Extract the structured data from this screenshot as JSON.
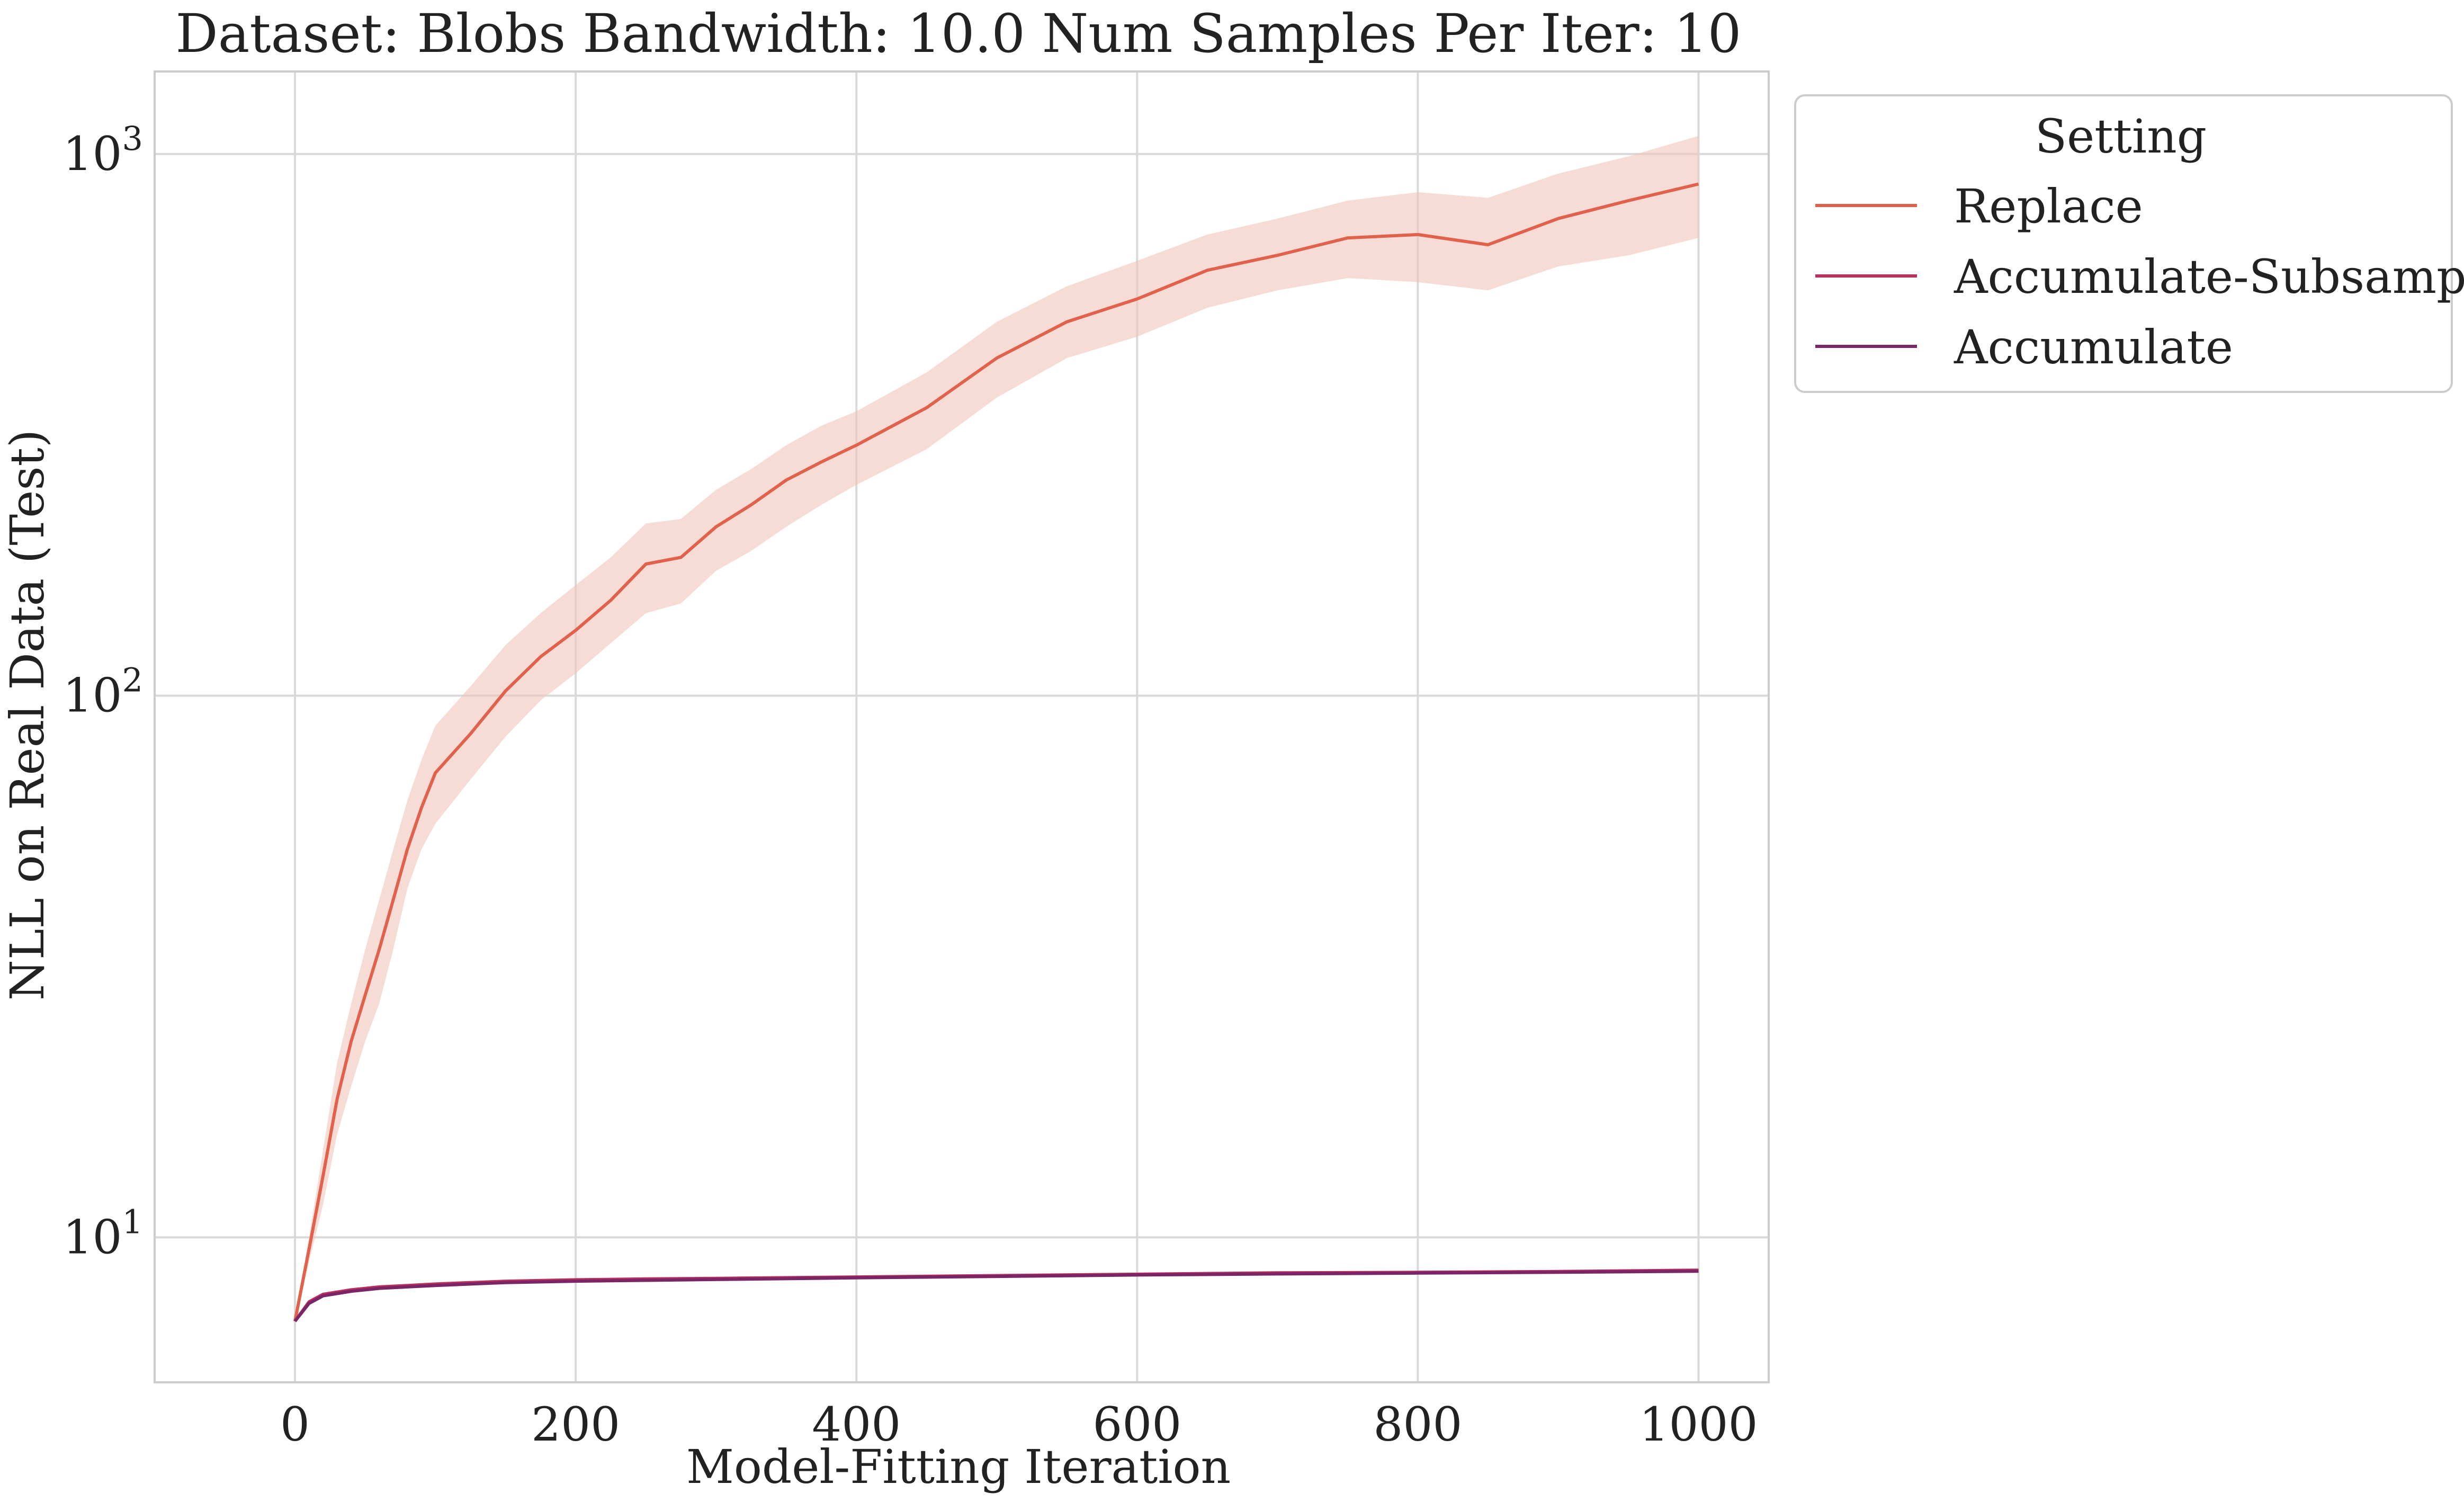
{
  "chart_data": {
    "type": "line",
    "title": "Dataset: Blobs Bandwidth: 10.0 Num Samples Per Iter: 10",
    "xlabel": "Model-Fitting Iteration",
    "ylabel": "NLL on Real Data (Test)",
    "xlim": [
      -100,
      1050
    ],
    "ylim": [
      5.4,
      1420
    ],
    "yscale": "log",
    "grid": true,
    "x_ticks": [
      0,
      200,
      400,
      600,
      800,
      1000
    ],
    "x_tick_labels": [
      "0",
      "200",
      "400",
      "600",
      "800",
      "1000"
    ],
    "y_ticks": [
      10,
      100,
      1000
    ],
    "y_tick_labels": [
      {
        "base": "10",
        "exp": "1"
      },
      {
        "base": "10",
        "exp": "2"
      },
      {
        "base": "10",
        "exp": "3"
      }
    ],
    "legend": {
      "title": "Setting",
      "position": "outside-top-right",
      "entries": [
        "Replace",
        "Accumulate-Subsample",
        "Accumulate"
      ]
    },
    "series": [
      {
        "name": "Replace",
        "color": "#e0624d",
        "band_color": "#f2c4bb",
        "x": [
          0,
          10,
          20,
          30,
          40,
          50,
          60,
          70,
          80,
          90,
          100,
          125,
          150,
          175,
          200,
          225,
          250,
          275,
          300,
          325,
          350,
          375,
          400,
          450,
          500,
          550,
          600,
          650,
          700,
          750,
          800,
          850,
          900,
          950,
          1000
        ],
        "y": [
          7,
          9.5,
          13,
          18,
          23,
          28,
          34,
          42,
          52,
          62,
          72,
          85,
          102,
          118,
          132,
          150,
          175,
          180,
          205,
          225,
          250,
          270,
          290,
          340,
          420,
          490,
          540,
          610,
          650,
          700,
          710,
          680,
          760,
          820,
          880
        ],
        "lower": [
          7,
          9,
          11.5,
          15.5,
          19,
          23,
          27,
          34,
          44,
          52,
          58,
          70,
          84,
          98,
          110,
          125,
          142,
          148,
          170,
          185,
          205,
          225,
          245,
          285,
          355,
          420,
          460,
          520,
          560,
          590,
          580,
          560,
          620,
          650,
          700
        ],
        "upper": [
          7,
          10,
          14.5,
          21,
          27,
          34,
          42,
          52,
          64,
          76,
          88,
          104,
          124,
          142,
          160,
          180,
          208,
          212,
          240,
          262,
          290,
          315,
          335,
          395,
          490,
          570,
          635,
          710,
          760,
          820,
          850,
          830,
          920,
          990,
          1080
        ]
      },
      {
        "name": "Accumulate-Subsample",
        "color": "#b9305c",
        "x": [
          0,
          10,
          20,
          40,
          60,
          80,
          100,
          150,
          200,
          250,
          300,
          400,
          500,
          600,
          700,
          800,
          900,
          1000
        ],
        "y": [
          7.0,
          7.6,
          7.85,
          8.0,
          8.1,
          8.15,
          8.2,
          8.3,
          8.35,
          8.38,
          8.4,
          8.45,
          8.5,
          8.55,
          8.6,
          8.62,
          8.65,
          8.7
        ]
      },
      {
        "name": "Accumulate",
        "color": "#7a2566",
        "x": [
          0,
          10,
          20,
          40,
          60,
          80,
          100,
          150,
          200,
          250,
          300,
          400,
          500,
          600,
          700,
          800,
          900,
          1000
        ],
        "y": [
          7.0,
          7.55,
          7.8,
          7.95,
          8.05,
          8.1,
          8.15,
          8.25,
          8.3,
          8.33,
          8.36,
          8.42,
          8.47,
          8.52,
          8.56,
          8.59,
          8.62,
          8.66
        ]
      }
    ]
  }
}
